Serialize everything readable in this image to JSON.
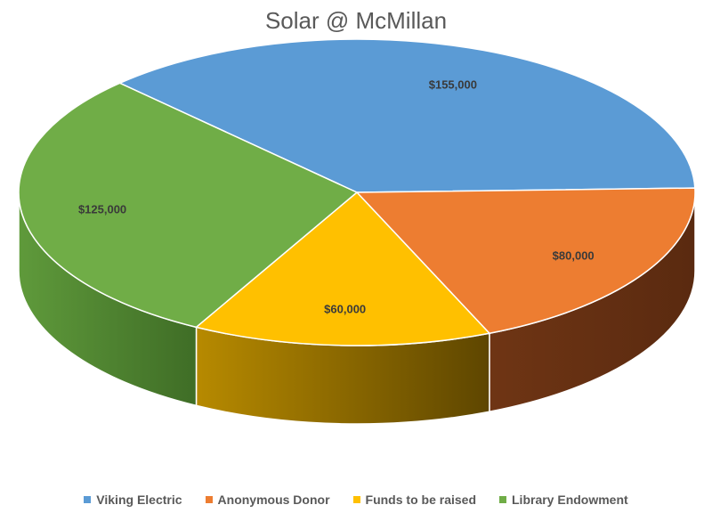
{
  "chart_data": {
    "type": "pie",
    "title": "Solar @ McMillan",
    "categories": [
      "Viking Electric",
      "Anonymous Donor",
      "Funds to be raised",
      "Library Endowment"
    ],
    "values": [
      155000,
      80000,
      60000,
      125000
    ],
    "data_labels": [
      "$155,000",
      "$80,000",
      "$60,000",
      "$125,000"
    ],
    "colors": [
      "#5B9BD5",
      "#ED7D31",
      "#FFC000",
      "#70AD47"
    ],
    "style": "3d",
    "legend_position": "bottom"
  }
}
